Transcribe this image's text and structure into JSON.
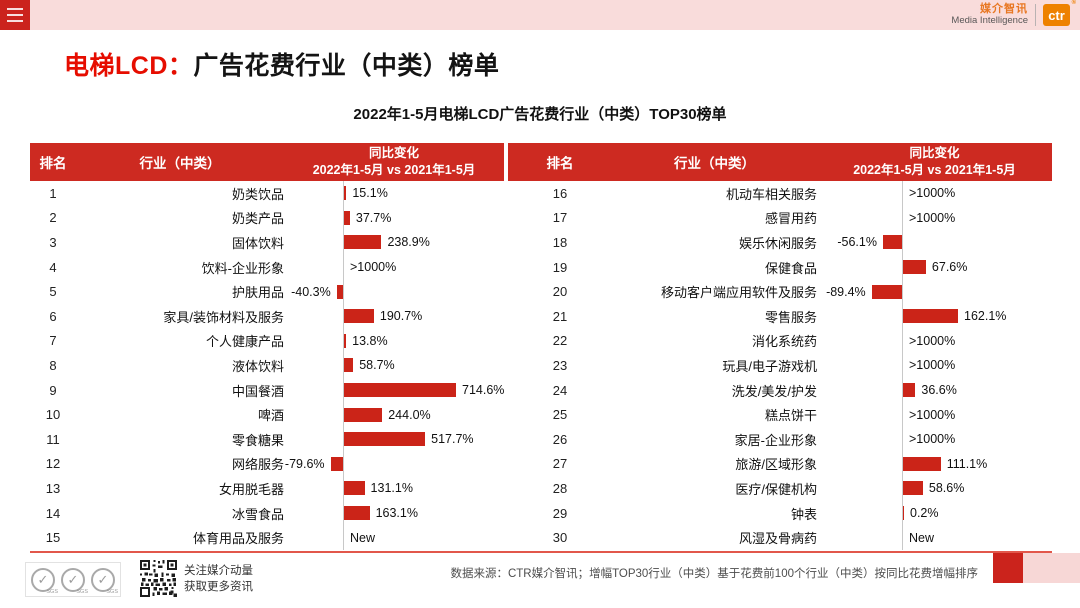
{
  "topbar": {
    "logo": {
      "cn": "媒介智讯",
      "en": "Media Intelligence",
      "ctr": "ctr",
      "reg": "®"
    }
  },
  "title": {
    "highlight": "电梯LCD：",
    "rest": "广告花费行业（中类）榜单"
  },
  "subtitle": "2022年1-5月电梯LCD广告花费行业（中类）TOP30榜单",
  "table": {
    "headers": {
      "rank": "排名",
      "industry": "行业（中类）",
      "change_line1": "同比变化",
      "change_line2": "2022年1-5月 vs 2021年1-5月"
    },
    "left_rows": [
      {
        "rank": "1",
        "industry": "奶类饮品",
        "label": "15.1%",
        "value": 15.1
      },
      {
        "rank": "2",
        "industry": "奶类产品",
        "label": "37.7%",
        "value": 37.7
      },
      {
        "rank": "3",
        "industry": "固体饮料",
        "label": "238.9%",
        "value": 238.9
      },
      {
        "rank": "4",
        "industry": "饮料-企业形象",
        "label": ">1000%",
        "value": null
      },
      {
        "rank": "5",
        "industry": "护肤用品",
        "label": "-40.3%",
        "value": -40.3
      },
      {
        "rank": "6",
        "industry": "家具/装饰材料及服务",
        "label": "190.7%",
        "value": 190.7
      },
      {
        "rank": "7",
        "industry": "个人健康产品",
        "label": "13.8%",
        "value": 13.8
      },
      {
        "rank": "8",
        "industry": "液体饮料",
        "label": "58.7%",
        "value": 58.7
      },
      {
        "rank": "9",
        "industry": "中国餐酒",
        "label": "714.6%",
        "value": 714.6
      },
      {
        "rank": "10",
        "industry": "啤酒",
        "label": "244.0%",
        "value": 244.0
      },
      {
        "rank": "11",
        "industry": "零食糖果",
        "label": "517.7%",
        "value": 517.7
      },
      {
        "rank": "12",
        "industry": "网络服务",
        "label": "-79.6%",
        "value": -79.6
      },
      {
        "rank": "13",
        "industry": "女用脱毛器",
        "label": "131.1%",
        "value": 131.1
      },
      {
        "rank": "14",
        "industry": "冰雪食品",
        "label": "163.1%",
        "value": 163.1
      },
      {
        "rank": "15",
        "industry": "体育用品及服务",
        "label": "New",
        "value": null
      }
    ],
    "right_rows": [
      {
        "rank": "16",
        "industry": "机动车相关服务",
        "label": ">1000%",
        "value": null
      },
      {
        "rank": "17",
        "industry": "感冒用药",
        "label": ">1000%",
        "value": null
      },
      {
        "rank": "18",
        "industry": "娱乐休闲服务",
        "label": "-56.1%",
        "value": -56.1
      },
      {
        "rank": "19",
        "industry": "保健食品",
        "label": "67.6%",
        "value": 67.6
      },
      {
        "rank": "20",
        "industry": "移动客户端应用软件及服务",
        "label": "-89.4%",
        "value": -89.4
      },
      {
        "rank": "21",
        "industry": "零售服务",
        "label": "162.1%",
        "value": 162.1
      },
      {
        "rank": "22",
        "industry": "消化系统药",
        "label": ">1000%",
        "value": null
      },
      {
        "rank": "23",
        "industry": "玩具/电子游戏机",
        "label": ">1000%",
        "value": null
      },
      {
        "rank": "24",
        "industry": "洗发/美发/护发",
        "label": "36.6%",
        "value": 36.6
      },
      {
        "rank": "25",
        "industry": "糕点饼干",
        "label": ">1000%",
        "value": null
      },
      {
        "rank": "26",
        "industry": "家居-企业形象",
        "label": ">1000%",
        "value": null
      },
      {
        "rank": "27",
        "industry": "旅游/区域形象",
        "label": "111.1%",
        "value": 111.1
      },
      {
        "rank": "28",
        "industry": "医疗/保健机构",
        "label": "58.6%",
        "value": 58.6
      },
      {
        "rank": "29",
        "industry": "钟表",
        "label": "0.2%",
        "value": 0.2
      },
      {
        "rank": "30",
        "industry": "风湿及骨病药",
        "label": "New",
        "value": null
      }
    ]
  },
  "footer": {
    "sgs_label": "SGS",
    "follow_line1": "关注媒介动量",
    "follow_line2": "获取更多资讯",
    "source": "数据来源：CTR媒介智讯；增幅TOP30行业（中类）基于花费前100个行业（中类）按同比花费增幅排序"
  },
  "colors": {
    "accent_red": "#cb231c",
    "header_red": "#cd2a21",
    "title_red": "#e60d00",
    "topbar_pink": "#f9dcdb",
    "brand_orange": "#ee8100"
  },
  "chart_data": {
    "type": "bar",
    "title": "2022年1-5月电梯LCD广告花费行业（中类）TOP30榜单",
    "series_name": "同比变化 2022年1-5月 vs 2021年1-5月",
    "unit": "%",
    "orientation": "horizontal",
    "categories": [
      "奶类饮品",
      "奶类产品",
      "固体饮料",
      "饮料-企业形象",
      "护肤用品",
      "家具/装饰材料及服务",
      "个人健康产品",
      "液体饮料",
      "中国餐酒",
      "啤酒",
      "零食糖果",
      "网络服务",
      "女用脱毛器",
      "冰雪食品",
      "体育用品及服务",
      "机动车相关服务",
      "感冒用药",
      "娱乐休闲服务",
      "保健食品",
      "移动客户端应用软件及服务",
      "零售服务",
      "消化系统药",
      "玩具/电子游戏机",
      "洗发/美发/护发",
      "糕点饼干",
      "家居-企业形象",
      "旅游/区域形象",
      "医疗/保健机构",
      "钟表",
      "风湿及骨病药"
    ],
    "values": [
      15.1,
      37.7,
      238.9,
      null,
      -40.3,
      190.7,
      13.8,
      58.7,
      714.6,
      244.0,
      517.7,
      -79.6,
      131.1,
      163.1,
      null,
      null,
      null,
      -56.1,
      67.6,
      -89.4,
      162.1,
      null,
      null,
      36.6,
      null,
      null,
      111.1,
      58.6,
      0.2,
      null
    ],
    "value_labels": [
      "15.1%",
      "37.7%",
      "238.9%",
      ">1000%",
      "-40.3%",
      "190.7%",
      "13.8%",
      "58.7%",
      "714.6%",
      "244.0%",
      "517.7%",
      "-79.6%",
      "131.1%",
      "163.1%",
      "New",
      ">1000%",
      ">1000%",
      "-56.1%",
      "67.6%",
      "-89.4%",
      "162.1%",
      ">1000%",
      ">1000%",
      "36.6%",
      ">1000%",
      ">1000%",
      "111.1%",
      "58.6%",
      "0.2%",
      "New"
    ],
    "ranks": [
      1,
      2,
      3,
      4,
      5,
      6,
      7,
      8,
      9,
      10,
      11,
      12,
      13,
      14,
      15,
      16,
      17,
      18,
      19,
      20,
      21,
      22,
      23,
      24,
      25,
      26,
      27,
      28,
      29,
      30
    ],
    "legend_position": "none",
    "grid": false
  }
}
